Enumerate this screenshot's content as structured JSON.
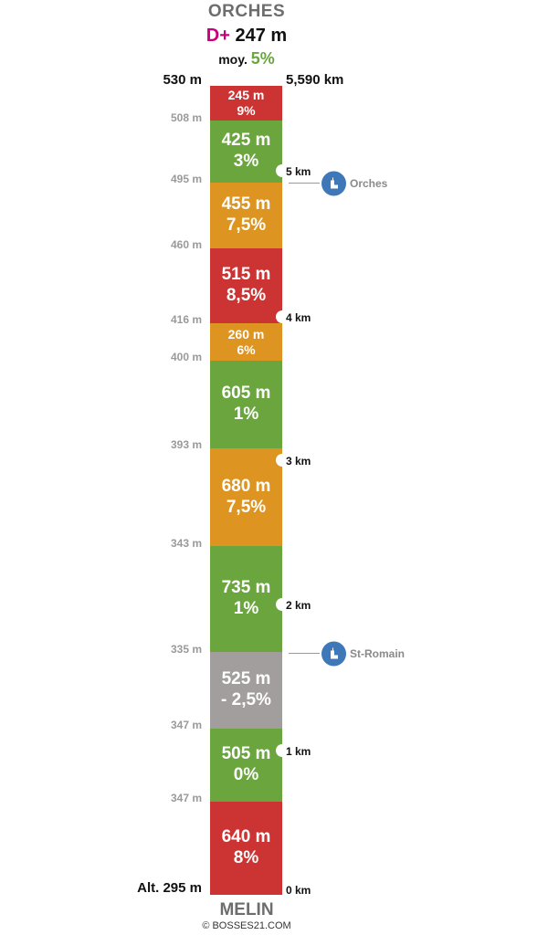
{
  "header": {
    "title": "ORCHES",
    "dplus_label": "D+",
    "dplus_value": "247 m",
    "avg_label": "moy.",
    "avg_value": "5%"
  },
  "profile": {
    "top_altitude": "530 m",
    "top_distance": "5,590 km",
    "bottom_altitude": "Alt. 295 m",
    "footer_name": "MELIN",
    "credit": "© BOSSES21.COM"
  },
  "colors": {
    "red": "#cc3333",
    "green": "#6aa53e",
    "orange": "#de9421",
    "gray": "#a39e9e",
    "poi_blue": "#3f78b8",
    "dplus": "#c8007a"
  },
  "segments": [
    {
      "length": "245 m",
      "grade": "9%",
      "color": "red"
    },
    {
      "length": "425 m",
      "grade": "3%",
      "color": "green"
    },
    {
      "length": "455 m",
      "grade": "7,5%",
      "color": "orange"
    },
    {
      "length": "515 m",
      "grade": "8,5%",
      "color": "red"
    },
    {
      "length": "260 m",
      "grade": "6%",
      "color": "orange"
    },
    {
      "length": "605 m",
      "grade": "1%",
      "color": "green"
    },
    {
      "length": "680 m",
      "grade": "7,5%",
      "color": "orange"
    },
    {
      "length": "735 m",
      "grade": "1%",
      "color": "green"
    },
    {
      "length": "525 m",
      "grade": "- 2,5%",
      "color": "gray"
    },
    {
      "length": "505 m",
      "grade": "0%",
      "color": "green"
    },
    {
      "length": "640 m",
      "grade": "8%",
      "color": "red"
    }
  ],
  "altitude_marks": [
    "508 m",
    "495 m",
    "460 m",
    "416 m",
    "400 m",
    "393 m",
    "343 m",
    "335 m",
    "347 m",
    "347 m"
  ],
  "km_marks": [
    "5 km",
    "4 km",
    "3 km",
    "2 km",
    "1 km",
    "0 km"
  ],
  "pois": [
    {
      "name": "Orches",
      "icon": "church-icon"
    },
    {
      "name": "St-Romain",
      "icon": "church-icon"
    }
  ]
}
